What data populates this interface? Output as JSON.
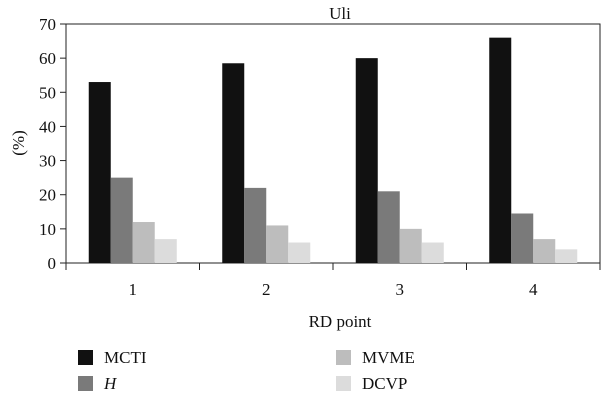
{
  "chart_data": {
    "type": "bar",
    "title": "Uli",
    "xlabel": "RD point",
    "ylabel": "(%)",
    "categories": [
      "1",
      "2",
      "3",
      "4"
    ],
    "ylim": [
      0,
      70
    ],
    "yticks": [
      "0",
      "10",
      "20",
      "30",
      "40",
      "50",
      "60",
      "70"
    ],
    "series": [
      {
        "name": "MCTI",
        "italic": false,
        "color": "#111111",
        "values": [
          53,
          58.5,
          60,
          66
        ]
      },
      {
        "name": "H",
        "italic": true,
        "color": "#7a7a7a",
        "values": [
          25,
          22,
          21,
          14.5
        ]
      },
      {
        "name": "MVME",
        "italic": false,
        "color": "#bdbdbd",
        "values": [
          12,
          11,
          10,
          7
        ]
      },
      {
        "name": "DCVP",
        "italic": false,
        "color": "#dcdcdc",
        "values": [
          7,
          6,
          6,
          4
        ]
      }
    ],
    "legend_position": "bottom",
    "grid": false
  }
}
